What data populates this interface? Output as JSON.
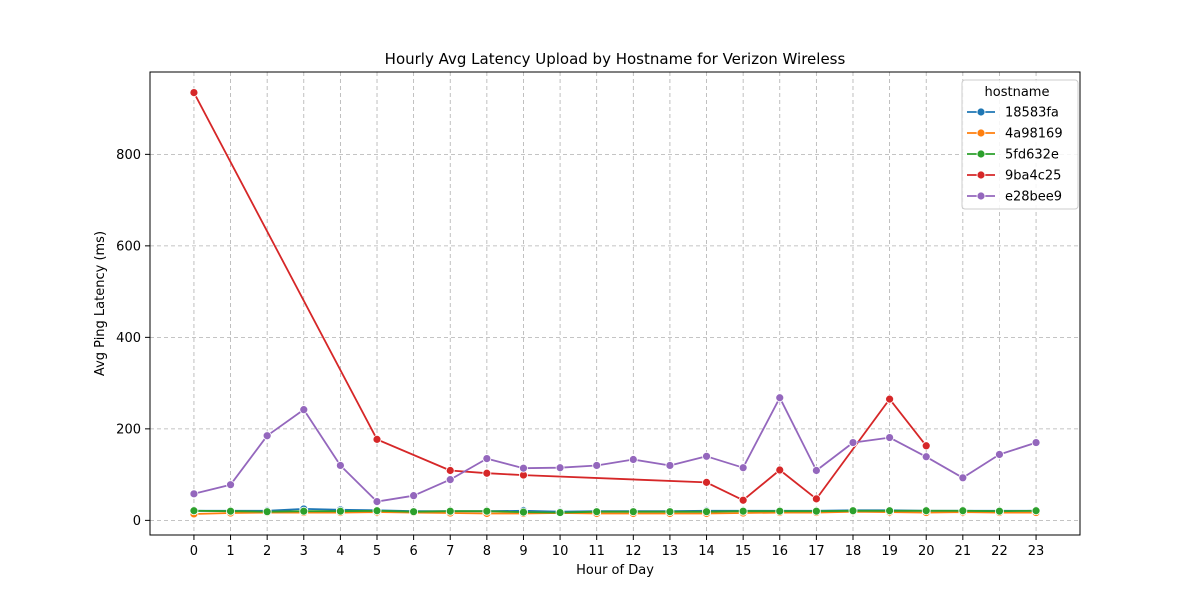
{
  "chart_data": {
    "type": "line",
    "title": "Hourly Avg Latency Upload by Hostname for Verizon Wireless",
    "xlabel": "Hour of Day",
    "ylabel": "Avg Ping Latency (ms)",
    "x": [
      0,
      1,
      2,
      3,
      4,
      5,
      6,
      7,
      8,
      9,
      10,
      11,
      12,
      13,
      14,
      15,
      16,
      17,
      18,
      19,
      20,
      21,
      22,
      23
    ],
    "xlim": [
      -1.2,
      24.2
    ],
    "ylim": [
      -32,
      980
    ],
    "yticks": [
      0,
      200,
      400,
      600,
      800
    ],
    "grid": true,
    "legend_title": "hostname",
    "legend_position": "top-right",
    "series": [
      {
        "name": "18583fa",
        "color": "#1f77b4",
        "x": [
          0,
          1,
          2,
          3,
          4,
          5,
          6,
          7,
          8,
          9,
          10,
          11,
          12,
          13,
          14,
          15,
          16,
          17,
          18,
          19,
          20,
          21,
          22,
          23
        ],
        "values": [
          21,
          21,
          21,
          25,
          23,
          22,
          20,
          20,
          20,
          21,
          19,
          20,
          20,
          20,
          21,
          21,
          21,
          21,
          22,
          22,
          21,
          21,
          21,
          21
        ]
      },
      {
        "name": "4a98169",
        "color": "#ff7f0e",
        "x": [
          0,
          1,
          2,
          3,
          4,
          5,
          6,
          7,
          8,
          9,
          10,
          11,
          12,
          13,
          14,
          15,
          16,
          17,
          18,
          19,
          20,
          21,
          22,
          23
        ],
        "values": [
          14,
          16,
          17,
          17,
          17,
          18,
          17,
          16,
          15,
          15,
          16,
          15,
          15,
          15,
          15,
          16,
          17,
          17,
          19,
          18,
          17,
          18,
          17,
          17
        ]
      },
      {
        "name": "5fd632e",
        "color": "#2ca02c",
        "x": [
          0,
          1,
          2,
          3,
          4,
          5,
          6,
          7,
          8,
          9,
          10,
          11,
          12,
          13,
          14,
          15,
          16,
          17,
          18,
          19,
          20,
          21,
          22,
          23
        ],
        "values": [
          21,
          20,
          19,
          20,
          20,
          21,
          19,
          20,
          20,
          18,
          17,
          19,
          19,
          19,
          19,
          20,
          20,
          20,
          21,
          21,
          21,
          21,
          20,
          21
        ]
      },
      {
        "name": "9ba4c25",
        "color": "#d62728",
        "x": [
          0,
          5,
          7,
          8,
          9,
          14,
          15,
          16,
          17,
          19,
          20
        ],
        "values": [
          935,
          177,
          109,
          103,
          99,
          83,
          44,
          110,
          47,
          265,
          163
        ]
      },
      {
        "name": "e28bee9",
        "color": "#9467bd",
        "x": [
          0,
          1,
          2,
          3,
          4,
          5,
          6,
          7,
          8,
          9,
          10,
          11,
          12,
          13,
          14,
          15,
          16,
          17,
          18,
          19,
          20,
          21,
          22,
          23
        ],
        "values": [
          58,
          78,
          185,
          242,
          120,
          41,
          54,
          89,
          135,
          114,
          115,
          120,
          133,
          120,
          140,
          115,
          268,
          109,
          170,
          181,
          139,
          93,
          144,
          170
        ]
      }
    ]
  }
}
